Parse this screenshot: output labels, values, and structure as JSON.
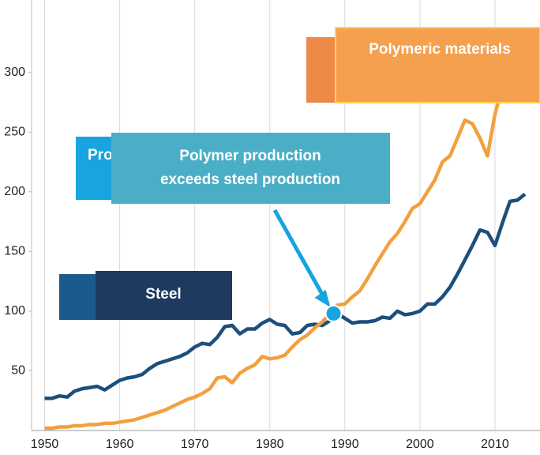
{
  "chart_data": {
    "type": "line",
    "x": [
      1950,
      1951,
      1952,
      1953,
      1954,
      1955,
      1956,
      1957,
      1958,
      1959,
      1960,
      1961,
      1962,
      1963,
      1964,
      1965,
      1966,
      1967,
      1968,
      1969,
      1970,
      1971,
      1972,
      1973,
      1974,
      1975,
      1976,
      1977,
      1978,
      1979,
      1980,
      1981,
      1982,
      1983,
      1984,
      1985,
      1986,
      1987,
      1988,
      1989,
      1990,
      1991,
      1992,
      1993,
      1994,
      1995,
      1996,
      1997,
      1998,
      1999,
      2000,
      2001,
      2002,
      2003,
      2004,
      2005,
      2006,
      2007,
      2008,
      2009,
      2010,
      2011,
      2012,
      2013,
      2014
    ],
    "series": [
      {
        "name": "Steel",
        "color": "#1c4f7c",
        "values": [
          27,
          27,
          29,
          28,
          33,
          35,
          36,
          37,
          34,
          38,
          42,
          44,
          45,
          47,
          52,
          56,
          58,
          60,
          62,
          65,
          70,
          73,
          72,
          78,
          87,
          88,
          81,
          85,
          85,
          90,
          93,
          89,
          88,
          81,
          82,
          88,
          89,
          88,
          92,
          98,
          94,
          90,
          91,
          91,
          92,
          95,
          94,
          100,
          97,
          98,
          100,
          106,
          106,
          112,
          120,
          131,
          143,
          155,
          168,
          166,
          155,
          174,
          192,
          193,
          198
        ]
      },
      {
        "name": "Polymeric materials",
        "color": "#f2a03f",
        "values": [
          2,
          2,
          3,
          3,
          4,
          4,
          5,
          5,
          6,
          6,
          7,
          8,
          9,
          11,
          13,
          15,
          17,
          20,
          23,
          26,
          28,
          31,
          35,
          44,
          45,
          40,
          48,
          52,
          55,
          62,
          60,
          61,
          63,
          70,
          76,
          80,
          86,
          91,
          98,
          105,
          106,
          112,
          117,
          127,
          138,
          148,
          158,
          165,
          175,
          186,
          190,
          200,
          210,
          225,
          230,
          245,
          260,
          257,
          245,
          230,
          265,
          288,
          300,
          311,
          null
        ]
      }
    ],
    "xlim": [
      1949,
      2016
    ],
    "ylim": [
      0,
      360
    ],
    "xticks": [
      1950,
      1960,
      1970,
      1980,
      1990,
      2000,
      2010
    ],
    "yticks": [
      50,
      100,
      150,
      200,
      250,
      300
    ],
    "grid": true,
    "annotations": [
      {
        "text": "Pro"
      },
      {
        "lines": [
          "Polymer production",
          "exceeds steel production"
        ],
        "x": 1988.5,
        "y": 98
      }
    ]
  }
}
